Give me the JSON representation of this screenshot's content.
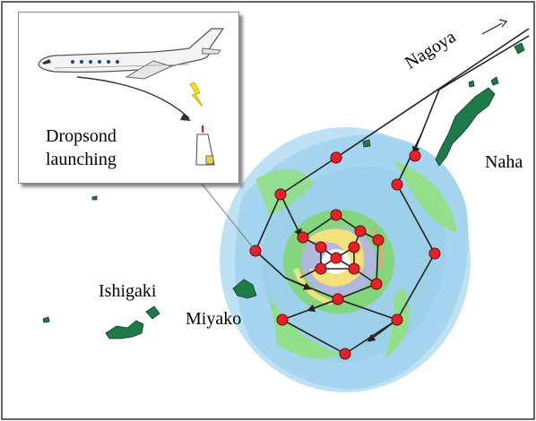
{
  "labels": {
    "nagoya": "Nagoya",
    "naha": "Naha",
    "ishigaki": "Ishigaki",
    "miyako": "Miyako"
  },
  "inset": {
    "caption_line1": "Dropsond",
    "caption_line2": "launching"
  },
  "colors": {
    "drop_point": "#e8202a",
    "flight_path": "#222222",
    "island": "#1f7a4a",
    "radar_low": "#a9d8f0",
    "radar_mid": "#8fe07a",
    "radar_high": "#f3e27a"
  },
  "icons": [
    "aircraft-icon",
    "lightning-icon",
    "dropsonde-icon",
    "direction-arrow-icon"
  ]
}
